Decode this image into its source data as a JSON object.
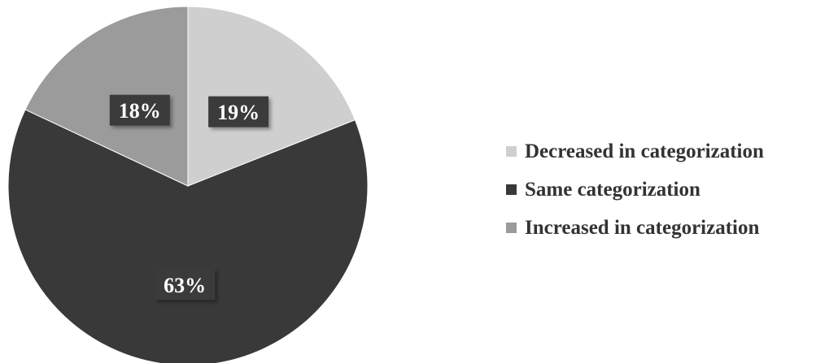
{
  "chart_data": {
    "type": "pie",
    "slices": [
      {
        "label": "Decreased in categorization",
        "value": 19,
        "display": "19%",
        "color": "#cfcfcf"
      },
      {
        "label": "Same categorization",
        "value": 63,
        "display": "63%",
        "color": "#393939"
      },
      {
        "label": "Increased in categorization",
        "value": 18,
        "display": "18%",
        "color": "#9b9b9b"
      }
    ],
    "start": "12 o'clock",
    "direction": "clockwise",
    "legend_position": "right",
    "label_box_color": "#3a3a3a"
  }
}
